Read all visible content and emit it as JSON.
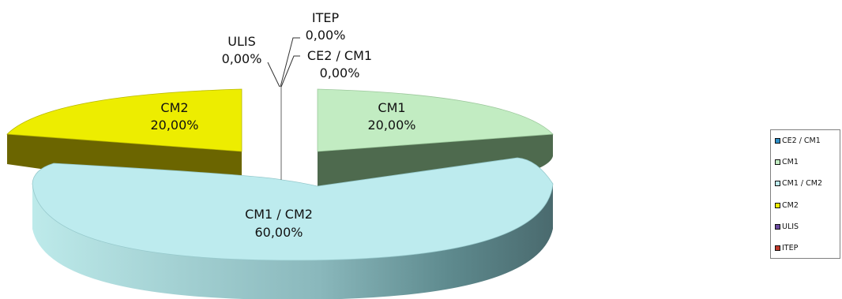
{
  "chart_data": {
    "type": "pie",
    "style": "3d-exploded",
    "slices": [
      {
        "name": "CE2 / CM1",
        "value": 0.0,
        "label": "CE2 / CM1",
        "pct": "0,00%",
        "color": "#2e8fc7"
      },
      {
        "name": "CM1",
        "value": 20.0,
        "label": "CM1",
        "pct": "20,00%",
        "color": "#c2ecc2"
      },
      {
        "name": "CM1 / CM2",
        "value": 60.0,
        "label": "CM1 / CM2",
        "pct": "60,00%",
        "color": "#bdebee"
      },
      {
        "name": "CM2",
        "value": 20.0,
        "label": "CM2",
        "pct": "20,00%",
        "color": "#eded00"
      },
      {
        "name": "ULIS",
        "value": 0.0,
        "label": "ULIS",
        "pct": "0,00%",
        "color": "#6b4aa0"
      },
      {
        "name": "ITEP",
        "value": 0.0,
        "label": "ITEP",
        "pct": "0,00%",
        "color": "#c0392b"
      }
    ],
    "side_colors": {
      "CM1": "#4f6a4f",
      "CM1 / CM2": "#5a8a8e",
      "CM2": "#6a6400"
    },
    "legend_position": "right"
  }
}
